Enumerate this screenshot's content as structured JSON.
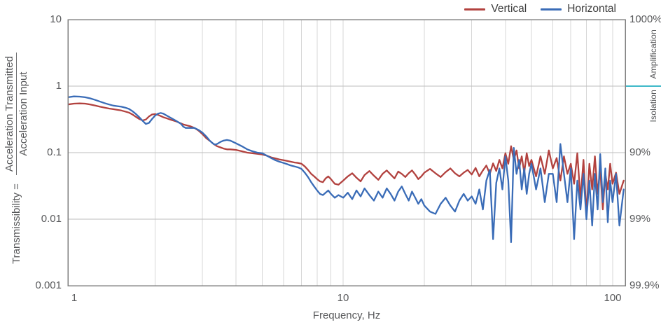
{
  "y_axis_label": {
    "prefix": "Transmissibility =",
    "numerator": "Acceleration Transmitted",
    "denominator": "Acceleration Input"
  },
  "y_axis": {
    "ticks": [
      "10",
      "1",
      "0.1",
      "0.01",
      "0.001"
    ]
  },
  "x_axis": {
    "label": "Frequency, Hz",
    "ticks": [
      "1",
      "10",
      "100"
    ]
  },
  "right_axis": {
    "ticks": [
      "1000%",
      "90%",
      "99%",
      "99.9%"
    ],
    "amplification": "Amplification",
    "isolation": "Isolation",
    "divider_color": "#3fb9c9"
  },
  "chart_data": {
    "type": "line",
    "title": "",
    "xlabel": "Frequency, Hz",
    "ylabel": "Transmissibility = Acceleration Transmitted / Acceleration Input",
    "x_scale": "log",
    "y_scale": "log",
    "x_range": [
      0.95,
      111.5
    ],
    "y_range": [
      0.001,
      10
    ],
    "grid": true,
    "legend_position": "top-right",
    "gridlines": {
      "x": [
        2,
        3,
        4,
        5,
        6,
        7,
        8,
        9,
        10,
        20,
        30,
        40,
        50,
        60,
        70,
        80,
        90,
        100
      ],
      "y": [
        1,
        0.1,
        0.01
      ]
    },
    "right_axis_marks": [
      {
        "label": "1000%",
        "t": 10
      },
      {
        "label": "90%",
        "t": 0.1
      },
      {
        "label": "99%",
        "t": 0.01
      },
      {
        "label": "99.9%",
        "t": 0.001
      }
    ],
    "series": [
      {
        "name": "Vertical",
        "color": "#b2423f",
        "points": [
          [
            0.95,
            0.53
          ],
          [
            1.0,
            0.545
          ],
          [
            1.05,
            0.55
          ],
          [
            1.1,
            0.545
          ],
          [
            1.15,
            0.53
          ],
          [
            1.2,
            0.51
          ],
          [
            1.25,
            0.49
          ],
          [
            1.3,
            0.475
          ],
          [
            1.35,
            0.46
          ],
          [
            1.4,
            0.45
          ],
          [
            1.45,
            0.44
          ],
          [
            1.5,
            0.43
          ],
          [
            1.55,
            0.415
          ],
          [
            1.6,
            0.4
          ],
          [
            1.65,
            0.375
          ],
          [
            1.7,
            0.345
          ],
          [
            1.75,
            0.32
          ],
          [
            1.8,
            0.305
          ],
          [
            1.85,
            0.315
          ],
          [
            1.9,
            0.35
          ],
          [
            1.95,
            0.375
          ],
          [
            2.0,
            0.38
          ],
          [
            2.05,
            0.37
          ],
          [
            2.1,
            0.355
          ],
          [
            2.15,
            0.34
          ],
          [
            2.2,
            0.33
          ],
          [
            2.3,
            0.31
          ],
          [
            2.4,
            0.295
          ],
          [
            2.5,
            0.275
          ],
          [
            2.55,
            0.265
          ],
          [
            2.6,
            0.26
          ],
          [
            2.7,
            0.25
          ],
          [
            2.8,
            0.235
          ],
          [
            2.9,
            0.215
          ],
          [
            3.0,
            0.19
          ],
          [
            3.1,
            0.165
          ],
          [
            3.2,
            0.15
          ],
          [
            3.3,
            0.135
          ],
          [
            3.4,
            0.125
          ],
          [
            3.5,
            0.12
          ],
          [
            3.6,
            0.115
          ],
          [
            3.7,
            0.112
          ],
          [
            3.8,
            0.112
          ],
          [
            3.9,
            0.111
          ],
          [
            4.0,
            0.11
          ],
          [
            4.2,
            0.105
          ],
          [
            4.4,
            0.1
          ],
          [
            4.6,
            0.098
          ],
          [
            4.8,
            0.096
          ],
          [
            5.0,
            0.094
          ],
          [
            5.2,
            0.09
          ],
          [
            5.4,
            0.085
          ],
          [
            5.6,
            0.082
          ],
          [
            5.8,
            0.079
          ],
          [
            6.0,
            0.077
          ],
          [
            6.2,
            0.075
          ],
          [
            6.4,
            0.073
          ],
          [
            6.6,
            0.071
          ],
          [
            6.8,
            0.07
          ],
          [
            7.0,
            0.068
          ],
          [
            7.2,
            0.062
          ],
          [
            7.4,
            0.055
          ],
          [
            7.6,
            0.048
          ],
          [
            7.8,
            0.044
          ],
          [
            8.0,
            0.04
          ],
          [
            8.2,
            0.037
          ],
          [
            8.4,
            0.036
          ],
          [
            8.6,
            0.041
          ],
          [
            8.8,
            0.044
          ],
          [
            9.0,
            0.04
          ],
          [
            9.3,
            0.034
          ],
          [
            9.6,
            0.033
          ],
          [
            10,
            0.038
          ],
          [
            10.4,
            0.044
          ],
          [
            10.8,
            0.049
          ],
          [
            11.2,
            0.042
          ],
          [
            11.6,
            0.037
          ],
          [
            12,
            0.046
          ],
          [
            12.5,
            0.053
          ],
          [
            13,
            0.045
          ],
          [
            13.5,
            0.039
          ],
          [
            14,
            0.048
          ],
          [
            14.5,
            0.054
          ],
          [
            15,
            0.047
          ],
          [
            15.5,
            0.041
          ],
          [
            16,
            0.052
          ],
          [
            16.5,
            0.048
          ],
          [
            17,
            0.043
          ],
          [
            17.5,
            0.049
          ],
          [
            18,
            0.054
          ],
          [
            18.5,
            0.047
          ],
          [
            19,
            0.04
          ],
          [
            19.5,
            0.044
          ],
          [
            20,
            0.05
          ],
          [
            21,
            0.057
          ],
          [
            22,
            0.049
          ],
          [
            23,
            0.043
          ],
          [
            24,
            0.051
          ],
          [
            25,
            0.058
          ],
          [
            26,
            0.049
          ],
          [
            27,
            0.044
          ],
          [
            28,
            0.05
          ],
          [
            29,
            0.055
          ],
          [
            30,
            0.047
          ],
          [
            31,
            0.059
          ],
          [
            32,
            0.044
          ],
          [
            33,
            0.054
          ],
          [
            34,
            0.064
          ],
          [
            35,
            0.048
          ],
          [
            36,
            0.069
          ],
          [
            37,
            0.053
          ],
          [
            38,
            0.078
          ],
          [
            39,
            0.058
          ],
          [
            40,
            0.098
          ],
          [
            41,
            0.068
          ],
          [
            42,
            0.125
          ],
          [
            43,
            0.078
          ],
          [
            44,
            0.108
          ],
          [
            45,
            0.058
          ],
          [
            46,
            0.088
          ],
          [
            47,
            0.05
          ],
          [
            48,
            0.098
          ],
          [
            49,
            0.063
          ],
          [
            50,
            0.078
          ],
          [
            52,
            0.044
          ],
          [
            54,
            0.088
          ],
          [
            56,
            0.048
          ],
          [
            58,
            0.108
          ],
          [
            60,
            0.058
          ],
          [
            62,
            0.083
          ],
          [
            64,
            0.038
          ],
          [
            66,
            0.088
          ],
          [
            68,
            0.048
          ],
          [
            70,
            0.068
          ],
          [
            72,
            0.034
          ],
          [
            74,
            0.098
          ],
          [
            76,
            0.02
          ],
          [
            78,
            0.078
          ],
          [
            80,
            0.012
          ],
          [
            82,
            0.068
          ],
          [
            84,
            0.028
          ],
          [
            86,
            0.088
          ],
          [
            88,
            0.024
          ],
          [
            90,
            0.058
          ],
          [
            92,
            0.014
          ],
          [
            94,
            0.048
          ],
          [
            96,
            0.028
          ],
          [
            98,
            0.068
          ],
          [
            100,
            0.034
          ],
          [
            103,
            0.05
          ],
          [
            106,
            0.024
          ],
          [
            110,
            0.038
          ]
        ]
      },
      {
        "name": "Horizontal",
        "color": "#3a6cb7",
        "points": [
          [
            0.95,
            0.68
          ],
          [
            1.0,
            0.7
          ],
          [
            1.05,
            0.695
          ],
          [
            1.1,
            0.68
          ],
          [
            1.15,
            0.655
          ],
          [
            1.2,
            0.62
          ],
          [
            1.25,
            0.585
          ],
          [
            1.3,
            0.555
          ],
          [
            1.35,
            0.53
          ],
          [
            1.4,
            0.51
          ],
          [
            1.45,
            0.5
          ],
          [
            1.5,
            0.49
          ],
          [
            1.55,
            0.475
          ],
          [
            1.6,
            0.455
          ],
          [
            1.65,
            0.42
          ],
          [
            1.7,
            0.38
          ],
          [
            1.75,
            0.34
          ],
          [
            1.8,
            0.3
          ],
          [
            1.85,
            0.27
          ],
          [
            1.9,
            0.28
          ],
          [
            1.95,
            0.32
          ],
          [
            2.0,
            0.36
          ],
          [
            2.05,
            0.385
          ],
          [
            2.1,
            0.395
          ],
          [
            2.15,
            0.385
          ],
          [
            2.2,
            0.365
          ],
          [
            2.3,
            0.33
          ],
          [
            2.4,
            0.3
          ],
          [
            2.5,
            0.27
          ],
          [
            2.55,
            0.245
          ],
          [
            2.6,
            0.235
          ],
          [
            2.7,
            0.235
          ],
          [
            2.8,
            0.235
          ],
          [
            2.9,
            0.22
          ],
          [
            3.0,
            0.2
          ],
          [
            3.1,
            0.175
          ],
          [
            3.2,
            0.15
          ],
          [
            3.3,
            0.135
          ],
          [
            3.35,
            0.132
          ],
          [
            3.4,
            0.135
          ],
          [
            3.5,
            0.145
          ],
          [
            3.6,
            0.152
          ],
          [
            3.7,
            0.155
          ],
          [
            3.8,
            0.152
          ],
          [
            3.9,
            0.145
          ],
          [
            4.0,
            0.138
          ],
          [
            4.2,
            0.125
          ],
          [
            4.4,
            0.112
          ],
          [
            4.6,
            0.105
          ],
          [
            4.8,
            0.1
          ],
          [
            5.0,
            0.098
          ],
          [
            5.2,
            0.09
          ],
          [
            5.4,
            0.083
          ],
          [
            5.6,
            0.077
          ],
          [
            5.8,
            0.073
          ],
          [
            6.0,
            0.07
          ],
          [
            6.2,
            0.067
          ],
          [
            6.4,
            0.064
          ],
          [
            6.6,
            0.062
          ],
          [
            6.8,
            0.06
          ],
          [
            7.0,
            0.057
          ],
          [
            7.2,
            0.05
          ],
          [
            7.4,
            0.043
          ],
          [
            7.6,
            0.036
          ],
          [
            7.8,
            0.031
          ],
          [
            8.0,
            0.027
          ],
          [
            8.2,
            0.024
          ],
          [
            8.4,
            0.023
          ],
          [
            8.6,
            0.025
          ],
          [
            8.8,
            0.027
          ],
          [
            9.0,
            0.024
          ],
          [
            9.3,
            0.021
          ],
          [
            9.6,
            0.023
          ],
          [
            10,
            0.021
          ],
          [
            10.4,
            0.025
          ],
          [
            10.8,
            0.02
          ],
          [
            11.2,
            0.027
          ],
          [
            11.6,
            0.022
          ],
          [
            12,
            0.029
          ],
          [
            12.5,
            0.023
          ],
          [
            13,
            0.019
          ],
          [
            13.5,
            0.026
          ],
          [
            14,
            0.021
          ],
          [
            14.5,
            0.029
          ],
          [
            15,
            0.024
          ],
          [
            15.5,
            0.019
          ],
          [
            16,
            0.026
          ],
          [
            16.5,
            0.031
          ],
          [
            17,
            0.024
          ],
          [
            17.5,
            0.019
          ],
          [
            18,
            0.026
          ],
          [
            18.5,
            0.021
          ],
          [
            19,
            0.017
          ],
          [
            19.5,
            0.02
          ],
          [
            20,
            0.016
          ],
          [
            21,
            0.013
          ],
          [
            22,
            0.012
          ],
          [
            23,
            0.017
          ],
          [
            24,
            0.021
          ],
          [
            25,
            0.016
          ],
          [
            26,
            0.013
          ],
          [
            27,
            0.019
          ],
          [
            28,
            0.024
          ],
          [
            29,
            0.019
          ],
          [
            30,
            0.022
          ],
          [
            31,
            0.017
          ],
          [
            32,
            0.028
          ],
          [
            33,
            0.014
          ],
          [
            34,
            0.038
          ],
          [
            35,
            0.055
          ],
          [
            36,
            0.005
          ],
          [
            37,
            0.035
          ],
          [
            38,
            0.058
          ],
          [
            39,
            0.028
          ],
          [
            40,
            0.088
          ],
          [
            41,
            0.038
          ],
          [
            42,
            0.0045
          ],
          [
            43,
            0.118
          ],
          [
            44,
            0.048
          ],
          [
            45,
            0.078
          ],
          [
            46,
            0.028
          ],
          [
            47,
            0.058
          ],
          [
            48,
            0.024
          ],
          [
            49,
            0.048
          ],
          [
            50,
            0.068
          ],
          [
            52,
            0.028
          ],
          [
            54,
            0.058
          ],
          [
            56,
            0.018
          ],
          [
            58,
            0.048
          ],
          [
            60,
            0.048
          ],
          [
            62,
            0.018
          ],
          [
            64,
            0.135
          ],
          [
            66,
            0.048
          ],
          [
            68,
            0.018
          ],
          [
            70,
            0.058
          ],
          [
            72,
            0.005
          ],
          [
            74,
            0.038
          ],
          [
            76,
            0.014
          ],
          [
            78,
            0.048
          ],
          [
            80,
            0.01
          ],
          [
            82,
            0.038
          ],
          [
            84,
            0.008
          ],
          [
            86,
            0.048
          ],
          [
            88,
            0.014
          ],
          [
            90,
            0.095
          ],
          [
            92,
            0.018
          ],
          [
            94,
            0.058
          ],
          [
            96,
            0.009
          ],
          [
            98,
            0.038
          ],
          [
            100,
            0.018
          ],
          [
            103,
            0.048
          ],
          [
            106,
            0.008
          ],
          [
            110,
            0.028
          ]
        ]
      }
    ]
  }
}
